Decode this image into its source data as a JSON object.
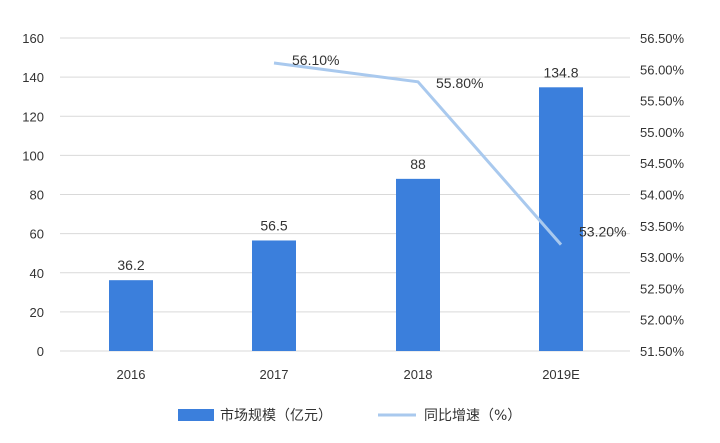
{
  "chart_data": {
    "type": "bar",
    "categories": [
      "2016",
      "2017",
      "2018",
      "2019E"
    ],
    "series": [
      {
        "name": "市场规模（亿元）",
        "type": "bar",
        "axis": "left",
        "values": [
          36.2,
          56.5,
          88,
          134.8
        ],
        "labels": [
          "36.2",
          "56.5",
          "88",
          "134.8"
        ],
        "color": "#3b7fdc"
      },
      {
        "name": "同比增速（%）",
        "type": "line",
        "axis": "right",
        "values": [
          null,
          56.1,
          55.8,
          53.2
        ],
        "labels": [
          "",
          "56.10%",
          "55.80%",
          "53.20%"
        ],
        "color": "#a9c9ee"
      }
    ],
    "y_left": {
      "min": 0,
      "max": 160,
      "ticks": [
        "0",
        "20",
        "40",
        "60",
        "80",
        "100",
        "120",
        "140",
        "160"
      ]
    },
    "y_right": {
      "min": 51.5,
      "max": 56.5,
      "ticks": [
        "51.50%",
        "52.00%",
        "52.50%",
        "53.00%",
        "53.50%",
        "54.00%",
        "54.50%",
        "55.00%",
        "55.50%",
        "56.00%",
        "56.50%"
      ]
    },
    "grid": true,
    "legend_position": "bottom"
  }
}
